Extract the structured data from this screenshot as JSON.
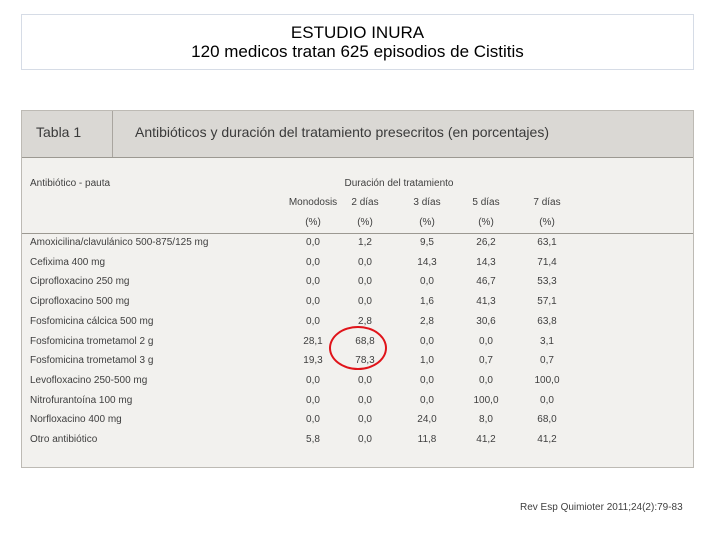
{
  "title": {
    "line1": "ESTUDIO INURA",
    "line2": "120 medicos tratan 625 episodios de Cistitis"
  },
  "table": {
    "label": "Tabla 1",
    "caption": "Antibióticos y duración del tratamiento presecritos (en porcentajes)",
    "row_header": "Antibiótico - pauta",
    "group_header": "Duración del tratamiento",
    "columns": [
      "Monodosis",
      "2 días",
      "3 días",
      "5 días",
      "7 días"
    ],
    "units": [
      "(%)",
      "(%)",
      "(%)",
      "(%)",
      "(%)"
    ],
    "rows": [
      {
        "name": "Amoxicilina/clavulánico 500-875/125 mg",
        "values": [
          "0,0",
          "1,2",
          "9,5",
          "26,2",
          "63,1"
        ]
      },
      {
        "name": "Cefixima 400 mg",
        "values": [
          "0,0",
          "0,0",
          "14,3",
          "14,3",
          "71,4"
        ]
      },
      {
        "name": "Ciprofloxacino 250 mg",
        "values": [
          "0,0",
          "0,0",
          "0,0",
          "46,7",
          "53,3"
        ]
      },
      {
        "name": "Ciprofloxacino 500 mg",
        "values": [
          "0,0",
          "0,0",
          "1,6",
          "41,3",
          "57,1"
        ]
      },
      {
        "name": "Fosfomicina cálcica 500 mg",
        "values": [
          "0,0",
          "2,8",
          "2,8",
          "30,6",
          "63,8"
        ]
      },
      {
        "name": "Fosfomicina trometamol 2 g",
        "values": [
          "28,1",
          "68,8",
          "0,0",
          "0,0",
          "3,1"
        ]
      },
      {
        "name": "Fosfomicina trometamol 3 g",
        "values": [
          "19,3",
          "78,3",
          "1,0",
          "0,7",
          "0,7"
        ]
      },
      {
        "name": "Levofloxacino 250-500 mg",
        "values": [
          "0,0",
          "0,0",
          "0,0",
          "0,0",
          "100,0"
        ]
      },
      {
        "name": "Nitrofurantoína 100 mg",
        "values": [
          "0,0",
          "0,0",
          "0,0",
          "100,0",
          "0,0"
        ]
      },
      {
        "name": "Norfloxacino 400 mg",
        "values": [
          "0,0",
          "0,0",
          "24,0",
          "8,0",
          "68,0"
        ]
      },
      {
        "name": "Otro antibiótico",
        "values": [
          "5,8",
          "0,0",
          "11,8",
          "41,2",
          "41,2"
        ]
      }
    ]
  },
  "highlight": {
    "color": "#e0141a"
  },
  "citation": "Rev Esp Quimioter 2011;24(2):79-83"
}
